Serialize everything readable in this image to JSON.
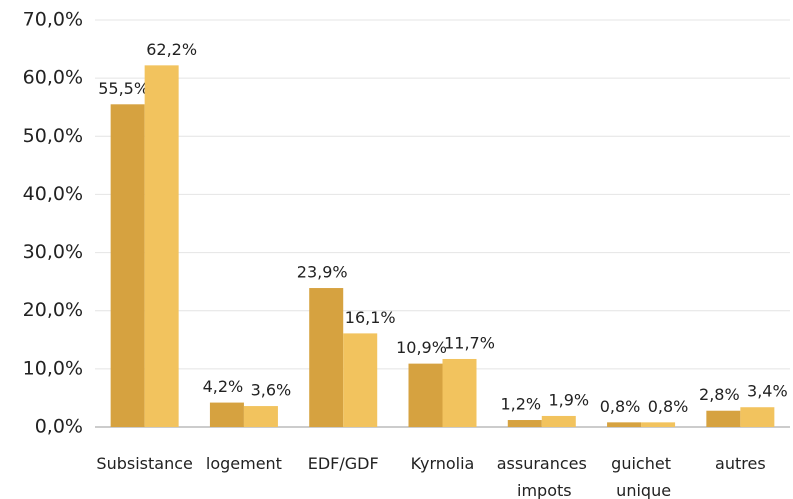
{
  "chart_data": {
    "type": "bar",
    "categories": [
      "Subsistance",
      "logement",
      "EDF/GDF",
      "Kyrnolia",
      "assurances impots",
      "guichet unique",
      "autres"
    ],
    "series": [
      {
        "color": "#d6a240",
        "values": [
          55.5,
          4.2,
          23.9,
          10.9,
          1.2,
          0.8,
          2.8
        ],
        "value_labels": [
          "55,5%",
          "4,2%",
          "23,9%",
          "10,9%",
          "1,2%",
          "0,8%",
          "2,8%"
        ]
      },
      {
        "color": "#f2c35e",
        "values": [
          62.2,
          3.6,
          16.1,
          11.7,
          1.9,
          0.8,
          3.4
        ],
        "value_labels": [
          "62,2%",
          "3,6%",
          "16,1%",
          "11,7%",
          "1,9%",
          "0,8%",
          "3,4%"
        ]
      }
    ],
    "ylim": [
      0,
      70
    ],
    "yticks": [
      {
        "value": 0,
        "label": "0,0%"
      },
      {
        "value": 10,
        "label": "10,0%"
      },
      {
        "value": 20,
        "label": "20,0%"
      },
      {
        "value": 30,
        "label": "30,0%"
      },
      {
        "value": 40,
        "label": "40,0%"
      },
      {
        "value": 50,
        "label": "50,0%"
      },
      {
        "value": 60,
        "label": "60,0%"
      },
      {
        "value": 70,
        "label": "70,0%"
      }
    ],
    "grid": true
  }
}
